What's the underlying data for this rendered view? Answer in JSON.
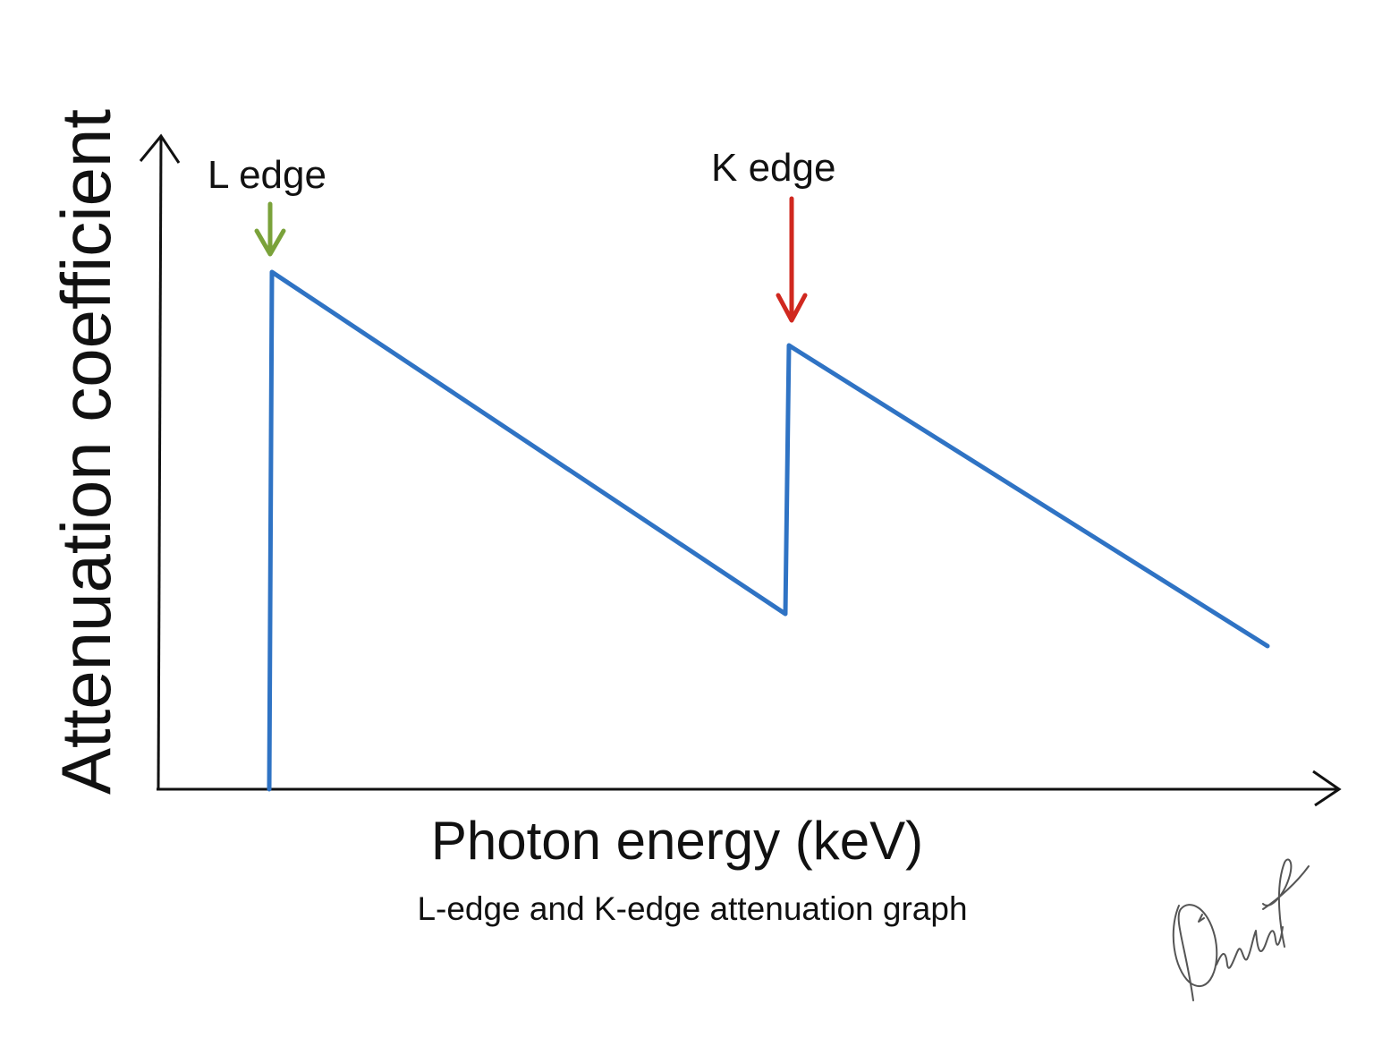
{
  "diagram": {
    "y_axis_label": "Attenuation coefficient",
    "x_axis_label": "Photon energy (keV)",
    "caption": "L-edge and K-edge attenuation graph",
    "annotations": [
      {
        "id": "l-edge",
        "label": "L edge",
        "arrow_color": "#7aa23a"
      },
      {
        "id": "k-edge",
        "label": "K edge",
        "arrow_color": "#d0281f"
      }
    ],
    "curve_color": "#2f73c4",
    "axis_color": "#111111",
    "signature": "handwritten signature (bottom-right)"
  }
}
